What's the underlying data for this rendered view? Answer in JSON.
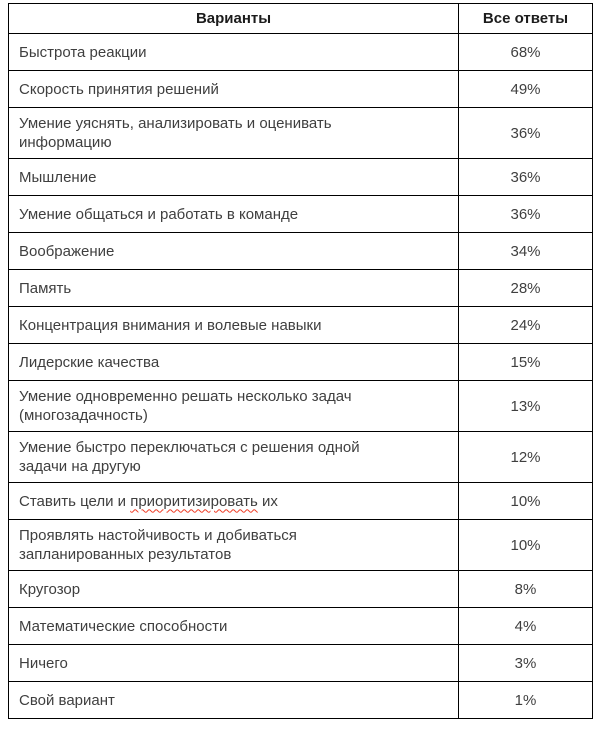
{
  "table": {
    "headers": {
      "options": "Варианты",
      "answers": "Все ответы"
    },
    "spellcheck_underline_color": "#ef3b24",
    "rows": [
      {
        "label": "Быстрота реакции",
        "value": "68%"
      },
      {
        "label": "Скорость принятия решений",
        "value": "49%"
      },
      {
        "label": "Умение уяснять, анализировать и оценивать\nинформацию",
        "value": "36%"
      },
      {
        "label": "Мышление",
        "value": "36%"
      },
      {
        "label": "Умение общаться и работать в команде",
        "value": "36%"
      },
      {
        "label": "Воображение",
        "value": "34%"
      },
      {
        "label": "Память",
        "value": "28%"
      },
      {
        "label": "Концентрация внимания и волевые навыки",
        "value": "24%"
      },
      {
        "label": "Лидерские качества",
        "value": "15%"
      },
      {
        "label": "Умение одновременно решать несколько задач\n(многозадачность)",
        "value": "13%"
      },
      {
        "label": "Умение быстро переключаться с решения одной\nзадачи на другую",
        "value": "12%"
      },
      {
        "parts": [
          {
            "text": "Ставить цели и "
          },
          {
            "text": "приоритизировать",
            "spellcheck": true
          },
          {
            "text": " их"
          }
        ],
        "value": "10%"
      },
      {
        "label": "Проявлять настойчивость и добиваться\nзапланированных результатов",
        "value": "10%"
      },
      {
        "label": "Кругозор",
        "value": "8%"
      },
      {
        "label": "Математические способности",
        "value": "4%"
      },
      {
        "label": "Ничего",
        "value": "3%"
      },
      {
        "label": "Свой вариант",
        "value": "1%"
      }
    ]
  }
}
